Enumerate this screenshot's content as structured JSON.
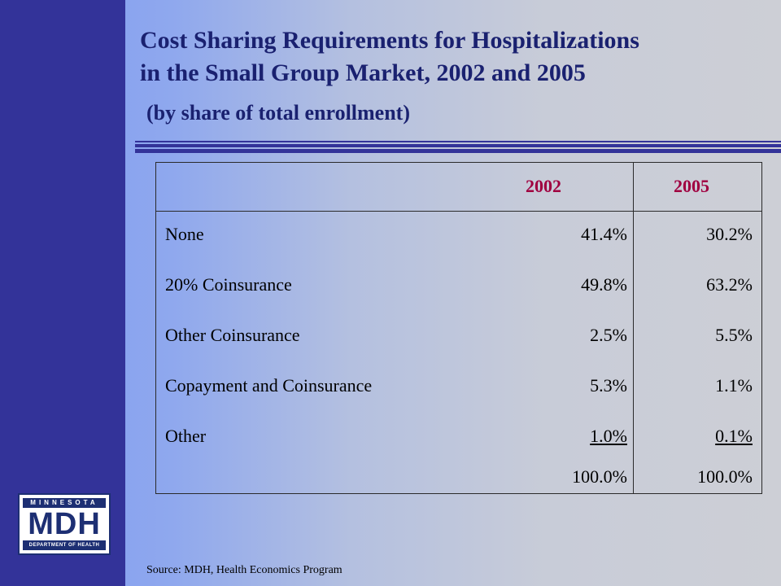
{
  "logo": {
    "top_band": "MINNESOTA",
    "mark": "MDH",
    "bottom_band": "DEPARTMENT OF HEALTH"
  },
  "title_line1": "Cost Sharing Requirements for Hospitalizations",
  "title_line2": "in the Small Group Market, 2002 and 2005",
  "subtitle": "(by share of total enrollment)",
  "source": "Source:  MDH, Health Economics Program",
  "chart_data": {
    "type": "table",
    "title": "Cost Sharing Requirements for Hospitalizations in the Small Group Market, 2002 and 2005",
    "subtitle": "(by share of total enrollment)",
    "columns": [
      "2002",
      "2005"
    ],
    "rows": [
      {
        "label": "None",
        "values": [
          "41.4%",
          "30.2%"
        ]
      },
      {
        "label": "20% Coinsurance",
        "values": [
          "49.8%",
          "63.2%"
        ]
      },
      {
        "label": "Other Coinsurance",
        "values": [
          "2.5%",
          "5.5%"
        ]
      },
      {
        "label": "Copayment and Coinsurance",
        "values": [
          "5.3%",
          "1.1%"
        ]
      },
      {
        "label": "Other",
        "values": [
          "1.0%",
          "0.1%"
        ]
      }
    ],
    "totals": [
      "100.0%",
      "100.0%"
    ]
  },
  "colors": {
    "sidebar": "#333399",
    "title": "#1a2170",
    "header_text": "#a00040"
  }
}
